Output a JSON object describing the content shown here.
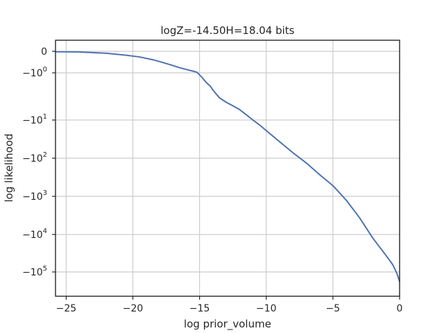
{
  "chart_data": {
    "type": "line",
    "title": "logZ=-14.50H=18.04 bits",
    "xlabel": "log prior_volume",
    "ylabel": "log likelihood",
    "xlim": [
      -25.8,
      0
    ],
    "yscale": "symlog",
    "grid": true,
    "legend": "none",
    "color": "#4c72b0",
    "x_ticks": [
      {
        "value": -25,
        "label": "−25"
      },
      {
        "value": -20,
        "label": "−20"
      },
      {
        "value": -15,
        "label": "−15"
      },
      {
        "value": -10,
        "label": "−10"
      },
      {
        "value": -5,
        "label": "−5"
      },
      {
        "value": 0,
        "label": "0"
      }
    ],
    "y_ticks": [
      {
        "value": 0,
        "base": "0",
        "exp": ""
      },
      {
        "value": -1,
        "base": "−10",
        "exp": "0"
      },
      {
        "value": -10,
        "base": "−10",
        "exp": "1"
      },
      {
        "value": -100,
        "base": "−10",
        "exp": "2"
      },
      {
        "value": -1000,
        "base": "−10",
        "exp": "3"
      },
      {
        "value": -10000,
        "base": "−10",
        "exp": "4"
      },
      {
        "value": -100000,
        "base": "−10",
        "exp": "5"
      }
    ],
    "series": [
      {
        "x": [
          -25.8,
          -24,
          -22,
          -20.5,
          -19.5,
          -18.5,
          -17.8,
          -17,
          -16.5,
          -16,
          -15.5,
          -15.2,
          -14.8,
          -14.5,
          -14.2,
          -14.0,
          -13.8,
          -13.5,
          -13.0,
          -12.5,
          -12.0,
          -11.5,
          -11.0,
          -10.5,
          -10.0,
          -9.0,
          -8.0,
          -7.0,
          -6.0,
          -5.0,
          -4.0,
          -3.0,
          -2.0,
          -1.0,
          -0.5,
          -0.2,
          0.0
        ],
        "y": [
          -0.02,
          -0.03,
          -0.09,
          -0.18,
          -0.26,
          -0.39,
          -0.51,
          -0.66,
          -0.76,
          -0.84,
          -0.92,
          -0.97,
          -1.26,
          -1.6,
          -1.9,
          -2.3,
          -2.7,
          -3.4,
          -4.2,
          -5.0,
          -6.0,
          -7.7,
          -10.0,
          -13.5,
          -18.9,
          -37,
          -72,
          -133,
          -270,
          -525,
          -1260,
          -3650,
          -12600,
          -37000,
          -65000,
          -110000,
          -180000
        ]
      }
    ]
  }
}
